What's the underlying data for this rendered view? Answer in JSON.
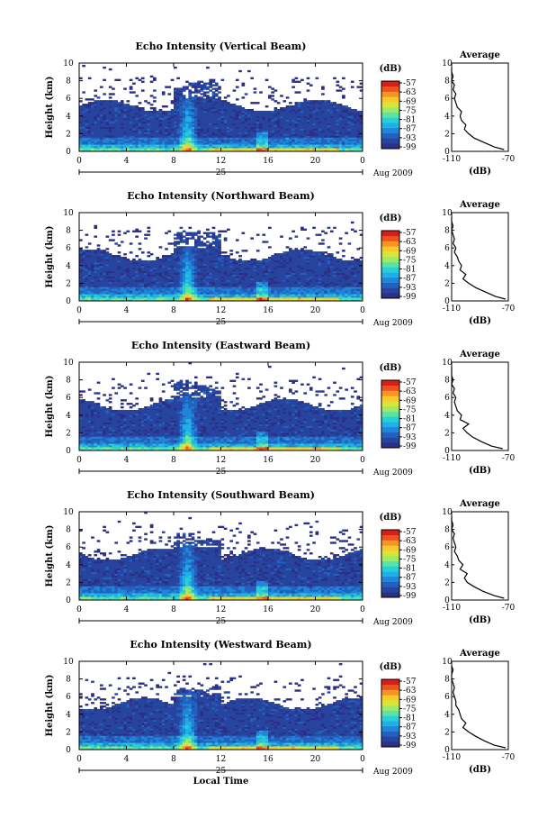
{
  "colors": {
    "scale": [
      "#2b2f86",
      "#27449e",
      "#2361be",
      "#1f86d8",
      "#1fb0e6",
      "#28d0d6",
      "#58e3a8",
      "#9bea6a",
      "#d6e63a",
      "#f8c82c",
      "#f89426",
      "#ec5222",
      "#d81e1a"
    ],
    "background": "#ffffff",
    "axis": "#000000"
  },
  "figure": {
    "colorbar_unit": "(dB)",
    "colorbar_ticks": [
      "-57",
      "-63",
      "-69",
      "-75",
      "-81",
      "-87",
      "-93",
      "-99"
    ],
    "date_label": "25",
    "month_label": "Aug 2009",
    "xlabel_bottom": "Local Time",
    "average_title": "Average",
    "average_xlabel": "(dB)",
    "average_xticks": [
      "-110",
      "-70"
    ]
  },
  "chart_data": [
    {
      "type": "heatmap",
      "title": "Echo Intensity (Vertical Beam)",
      "xlabel": "",
      "ylabel": "Height (km)",
      "x_ticks": [
        "0",
        "4",
        "8",
        "12",
        "16",
        "20",
        "0"
      ],
      "y_ticks": [
        "0",
        "2",
        "4",
        "6",
        "8",
        "10"
      ],
      "xlim": [
        0,
        24
      ],
      "ylim": [
        0,
        10
      ],
      "colorbar": {
        "unit": "(dB)",
        "range": [
          -99,
          -57
        ]
      },
      "average_profile": {
        "xlabel": "(dB)",
        "xlim": [
          -110,
          -70
        ],
        "ylim": [
          0,
          10
        ],
        "height": [
          0.2,
          0.5,
          1.0,
          1.5,
          2.0,
          2.5,
          3.0,
          3.5,
          4.0,
          4.5,
          5.0,
          5.5,
          6.0,
          6.5,
          7.0,
          7.5,
          8.0,
          8.5,
          9.0,
          9.5
        ],
        "db": [
          -73,
          -80,
          -87,
          -94,
          -98,
          -101,
          -100,
          -103,
          -104,
          -103,
          -106,
          -107,
          -108,
          -107,
          -109,
          -108,
          -110,
          -109,
          -110,
          -110
        ]
      }
    },
    {
      "type": "heatmap",
      "title": "Echo Intensity (Northward Beam)",
      "xlabel": "",
      "ylabel": "Height (km)",
      "x_ticks": [
        "0",
        "4",
        "8",
        "12",
        "16",
        "20",
        "0"
      ],
      "y_ticks": [
        "0",
        "2",
        "4",
        "6",
        "8",
        "10"
      ],
      "xlim": [
        0,
        24
      ],
      "ylim": [
        0,
        10
      ],
      "colorbar": {
        "unit": "(dB)",
        "range": [
          -99,
          -57
        ]
      },
      "average_profile": {
        "xlabel": "(dB)",
        "xlim": [
          -110,
          -70
        ],
        "ylim": [
          0,
          10
        ],
        "height": [
          0.2,
          0.5,
          1.0,
          1.5,
          2.0,
          2.5,
          3.0,
          3.5,
          4.0,
          4.5,
          5.0,
          5.5,
          6.0,
          6.5,
          7.0,
          7.5,
          8.0,
          8.5,
          9.0,
          9.5
        ],
        "db": [
          -72,
          -79,
          -86,
          -93,
          -98,
          -102,
          -100,
          -104,
          -103,
          -105,
          -106,
          -108,
          -107,
          -109,
          -108,
          -109,
          -110,
          -109,
          -110,
          -110
        ]
      }
    },
    {
      "type": "heatmap",
      "title": "Echo Intensity (Eastward Beam)",
      "xlabel": "",
      "ylabel": "Height (km)",
      "x_ticks": [
        "0",
        "4",
        "8",
        "12",
        "16",
        "20",
        "0"
      ],
      "y_ticks": [
        "0",
        "2",
        "4",
        "6",
        "8",
        "10"
      ],
      "xlim": [
        0,
        24
      ],
      "ylim": [
        0,
        10
      ],
      "colorbar": {
        "unit": "(dB)",
        "range": [
          -99,
          -57
        ]
      },
      "average_profile": {
        "xlabel": "(dB)",
        "xlim": [
          -110,
          -70
        ],
        "ylim": [
          0,
          10
        ],
        "height": [
          0.2,
          0.5,
          1.0,
          1.5,
          2.0,
          2.5,
          3.0,
          3.5,
          4.0,
          4.5,
          5.0,
          5.5,
          6.0,
          6.5,
          7.0,
          7.5,
          8.0,
          8.5,
          9.0,
          9.5
        ],
        "db": [
          -74,
          -82,
          -89,
          -95,
          -99,
          -102,
          -98,
          -104,
          -103,
          -106,
          -107,
          -108,
          -107,
          -109,
          -108,
          -110,
          -109,
          -110,
          -110,
          -110
        ]
      }
    },
    {
      "type": "heatmap",
      "title": "Echo Intensity (Southward Beam)",
      "xlabel": "",
      "ylabel": "Height (km)",
      "x_ticks": [
        "0",
        "4",
        "8",
        "12",
        "16",
        "20",
        "0"
      ],
      "y_ticks": [
        "0",
        "2",
        "4",
        "6",
        "8",
        "10"
      ],
      "xlim": [
        0,
        24
      ],
      "ylim": [
        0,
        10
      ],
      "colorbar": {
        "unit": "(dB)",
        "range": [
          -99,
          -57
        ]
      },
      "average_profile": {
        "xlabel": "(dB)",
        "xlim": [
          -110,
          -70
        ],
        "ylim": [
          0,
          10
        ],
        "height": [
          0.2,
          0.5,
          1.0,
          1.5,
          2.0,
          2.5,
          3.0,
          3.5,
          4.0,
          4.5,
          5.0,
          5.5,
          6.0,
          6.5,
          7.0,
          7.5,
          8.0,
          8.5,
          9.0,
          9.5
        ],
        "db": [
          -73,
          -80,
          -88,
          -94,
          -99,
          -101,
          -99,
          -104,
          -102,
          -105,
          -106,
          -108,
          -107,
          -108,
          -109,
          -108,
          -110,
          -109,
          -110,
          -110
        ]
      }
    },
    {
      "type": "heatmap",
      "title": "Echo Intensity (Westward Beam)",
      "xlabel": "Local Time",
      "ylabel": "Height (km)",
      "x_ticks": [
        "0",
        "4",
        "8",
        "12",
        "16",
        "20",
        "0"
      ],
      "y_ticks": [
        "0",
        "2",
        "4",
        "6",
        "8",
        "10"
      ],
      "xlim": [
        0,
        24
      ],
      "ylim": [
        0,
        10
      ],
      "colorbar": {
        "unit": "(dB)",
        "range": [
          -99,
          -57
        ]
      },
      "average_profile": {
        "xlabel": "(dB)",
        "xlim": [
          -110,
          -70
        ],
        "ylim": [
          0,
          10
        ],
        "height": [
          0.2,
          0.5,
          1.0,
          1.5,
          2.0,
          2.5,
          3.0,
          3.5,
          4.0,
          4.5,
          5.0,
          5.5,
          6.0,
          6.5,
          7.0,
          7.5,
          8.0,
          8.5,
          9.0,
          9.5
        ],
        "db": [
          -72,
          -80,
          -87,
          -93,
          -98,
          -102,
          -100,
          -103,
          -104,
          -105,
          -107,
          -107,
          -108,
          -109,
          -108,
          -109,
          -110,
          -110,
          -109,
          -110
        ]
      }
    }
  ]
}
